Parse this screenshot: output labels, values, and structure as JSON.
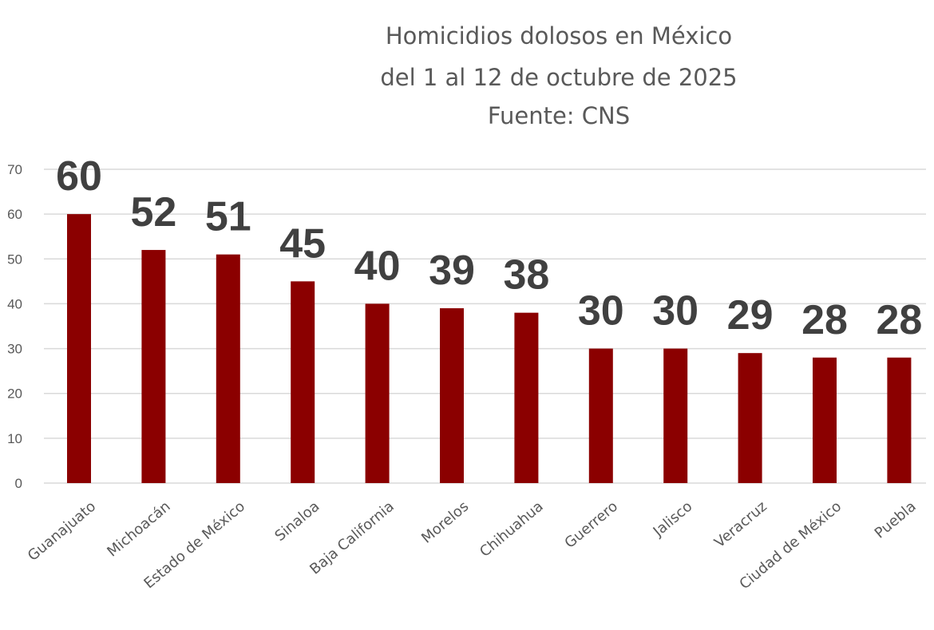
{
  "chart_data": {
    "type": "bar",
    "title": [
      "Homicidios dolosos en México",
      "del 1 al 12 de octubre de 2025",
      "Fuente: CNS"
    ],
    "xlabel": "",
    "ylabel": "",
    "categories": [
      "Guanajuato",
      "Michoacán",
      "Estado de México",
      "Sinaloa",
      "Baja California",
      "Morelos",
      "Chihuahua",
      "Guerrero",
      "Jalisco",
      "Veracruz",
      "Ciudad de México",
      "Puebla"
    ],
    "values": [
      60,
      52,
      51,
      45,
      40,
      39,
      38,
      30,
      30,
      29,
      28,
      28
    ],
    "ylim": [
      0,
      70
    ],
    "yticks": [
      0,
      10,
      20,
      30,
      40,
      50,
      60,
      70
    ],
    "grid": true,
    "legend": "none",
    "bar_color": "#8b0000",
    "data_labels": true
  }
}
